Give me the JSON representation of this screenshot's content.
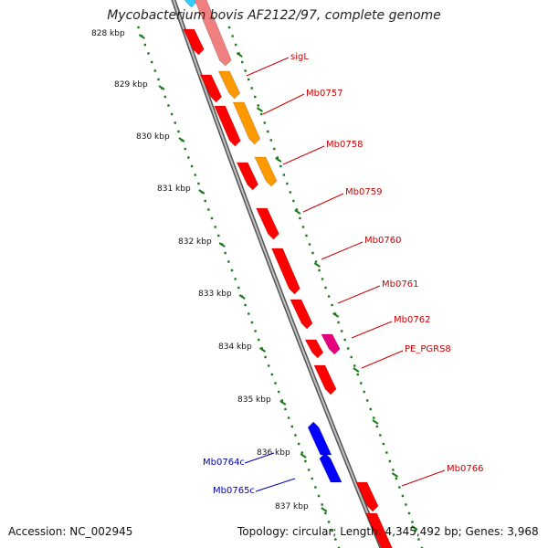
{
  "title": "Mycobacterium bovis AF2122/97, complete genome",
  "footer": {
    "accession": "Accession: NC_002945",
    "topology": "Topology: circular; Length: 4,345,492 bp; Genes: 3,968"
  },
  "ticks": [
    "828 kbp",
    "829 kbp",
    "830 kbp",
    "831 kbp",
    "832 kbp",
    "833 kbp",
    "834 kbp",
    "835 kbp",
    "836 kbp",
    "837 kbp"
  ],
  "gene_labels": [
    {
      "name": "sigL",
      "strand": "forward",
      "color": "#cc0000"
    },
    {
      "name": "Mb0757",
      "strand": "forward",
      "color": "#cc0000"
    },
    {
      "name": "Mb0758",
      "strand": "forward",
      "color": "#cc0000"
    },
    {
      "name": "Mb0759",
      "strand": "forward",
      "color": "#cc0000"
    },
    {
      "name": "Mb0760",
      "strand": "forward",
      "color": "#cc0000"
    },
    {
      "name": "Mb0761",
      "strand": "forward",
      "color": "#cc0000"
    },
    {
      "name": "Mb0762",
      "strand": "forward",
      "color": "#cc0000"
    },
    {
      "name": "PE_PGRS8",
      "strand": "forward",
      "color": "#cc0000"
    },
    {
      "name": "Mb0766",
      "strand": "forward",
      "color": "#cc0000"
    },
    {
      "name": "Mb0764c",
      "strand": "reverse",
      "color": "#0000bb"
    },
    {
      "name": "Mb0765c",
      "strand": "reverse",
      "color": "#0000bb"
    }
  ],
  "colors": {
    "cds": "#ff0000",
    "cds_light": "#f08080",
    "rrna_trna": "#ff9900",
    "pe_pgrs": "#e6007e",
    "reverse_cds": "#0000ff",
    "misc_feature": "#33ccff",
    "backbone": "#888888",
    "tick_marks": "#1a7a1a"
  }
}
